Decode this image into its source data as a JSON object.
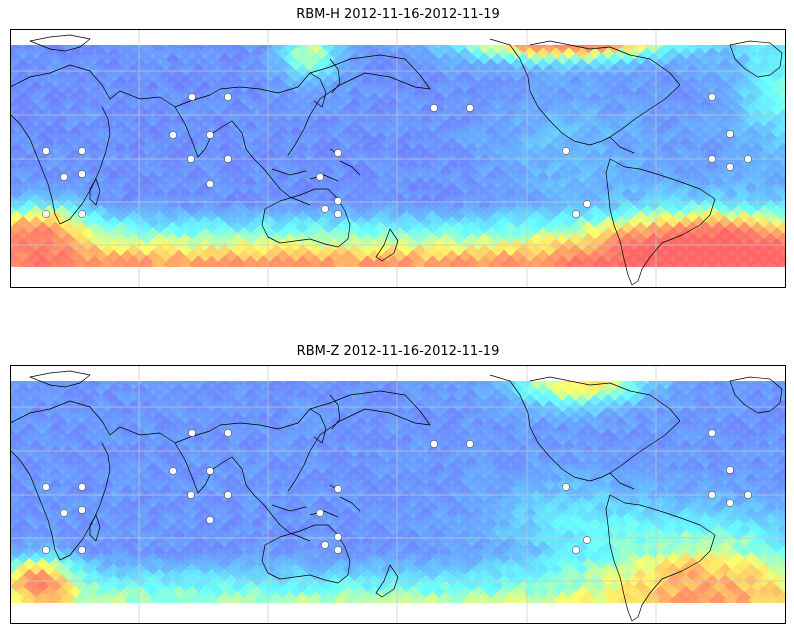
{
  "panels": [
    {
      "title": "RBM-H 2012-11-16-2012-11-19",
      "field": "H",
      "description_note": "Worldwide field on equirectangular grid; high (red/orange) near southern ocean band and North Atlantic, low (blue/purple) over tropics."
    },
    {
      "title": "RBM-Z 2012-11-16-2012-11-19",
      "field": "Z",
      "description_note": "Similar field, mostly blue/cyan; yellow near southern ocean and off eastern South America."
    }
  ],
  "colormap": {
    "low": "#6f6fff",
    "low_mid": "#66b3ff",
    "mid": "#66ffff",
    "mid_high": "#ffff66",
    "high": "#ff9966",
    "max": "#ff6666"
  },
  "gridline_color": "#c8c8c8",
  "coastline_color": "#000000",
  "station_marker_color": "#ffffff",
  "station_count": 28
}
